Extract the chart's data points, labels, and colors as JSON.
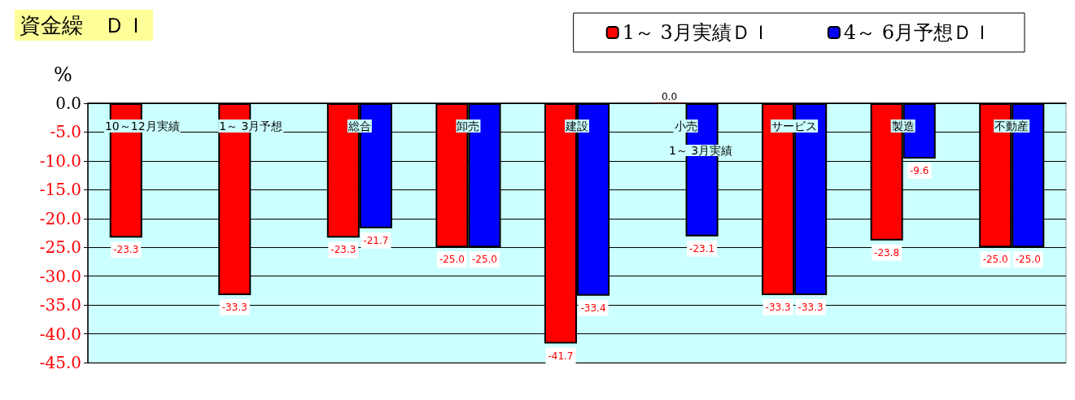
{
  "chart_data": {
    "type": "bar",
    "title": "資金繰　ＤＩ",
    "ylabel": "%",
    "categories": [
      "10～12月実績",
      "1～ 3月予想",
      "総合",
      "卸売",
      "建設",
      "小売",
      "サービス",
      "製造",
      "不動産"
    ],
    "series": [
      {
        "name": "1～ 3月実績ＤＩ",
        "color": "#ff0000",
        "values": [
          -23.3,
          -33.3,
          -23.3,
          -25.0,
          -41.7,
          0.0,
          -33.3,
          -23.8,
          -25.0
        ],
        "value_labels": [
          "-23.3",
          "-33.3",
          "-23.3",
          "-25.0",
          "-41.7",
          "0.0",
          "-33.3",
          "-23.8",
          "-25.0"
        ]
      },
      {
        "name": "4～ 6月予想ＤＩ",
        "color": "#0000ff",
        "values": [
          null,
          null,
          -21.7,
          -25.0,
          -33.4,
          -23.1,
          -33.3,
          -9.6,
          -25.0
        ],
        "value_labels": [
          null,
          null,
          "-21.7",
          "-25.0",
          "-33.4",
          "-23.1",
          "-33.3",
          "-9.6",
          "-25.0"
        ]
      }
    ],
    "ylim": [
      -45,
      0
    ],
    "yticks": [
      {
        "value": 0,
        "label": "0.0"
      },
      {
        "value": -5,
        "label": "-5.0"
      },
      {
        "value": -10,
        "label": "-10.0"
      },
      {
        "value": -15,
        "label": "-15.0"
      },
      {
        "value": -20,
        "label": "-20.0"
      },
      {
        "value": -25,
        "label": "-25.0"
      },
      {
        "value": -30,
        "label": "-30.0"
      },
      {
        "value": -35,
        "label": "-35.0"
      },
      {
        "value": -40,
        "label": "-40.0"
      },
      {
        "value": -45,
        "label": "-45.0"
      }
    ],
    "annotations": [
      "1～ 3月実績"
    ],
    "grid": "y",
    "legend": "top right"
  }
}
